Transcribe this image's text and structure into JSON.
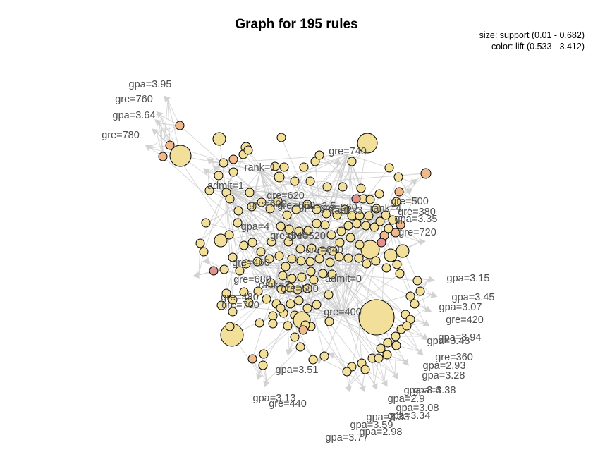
{
  "title": "Graph for 195 rules",
  "legend": {
    "size_line": "size: support (0.01 - 0.682)",
    "color_line": "color: lift (0.533 - 3.412)"
  },
  "colors": {
    "node_low": "#f1df9a",
    "node_mid": "#f0b98a",
    "node_high": "#e39090",
    "edge": "#c8c8c8",
    "arrow": "#d2d2d2",
    "label": "#4d4d4d"
  },
  "item_labels": [
    "gpa=3.95",
    "gre=760",
    "gpa=3.64",
    "gre=780",
    "gre=740",
    "rank=1",
    "admit=1",
    "gre=620",
    "gre=600",
    "gre=660",
    "gpa=3.5",
    "gre=560",
    "rank=3",
    "rank=4",
    "gre=500",
    "gre=380",
    "gpa=3.35",
    "gpa=4",
    "gre=540",
    "gre=520",
    "gre=720",
    "gre=640",
    "gre=460",
    "gre=680",
    "rank=2",
    "gre=580",
    "admit=0",
    "gre=480",
    "gre=700",
    "gre=400",
    "gpa=3.15",
    "gpa=3.45",
    "gpa=3.07",
    "gre=420",
    "gpa=3.94",
    "gpa=3.43",
    "gre=360",
    "gpa=2.93",
    "gpa=3.28",
    "gpa=3.4",
    "gpa=3.38",
    "gpa=2.9",
    "gpa=3.08",
    "gpa=3.34",
    "gpa=3.33",
    "gpa=3.59",
    "gpa=2.98",
    "gpa=3.77",
    "gpa=3.51",
    "gpa=3.13",
    "gre=440"
  ]
}
